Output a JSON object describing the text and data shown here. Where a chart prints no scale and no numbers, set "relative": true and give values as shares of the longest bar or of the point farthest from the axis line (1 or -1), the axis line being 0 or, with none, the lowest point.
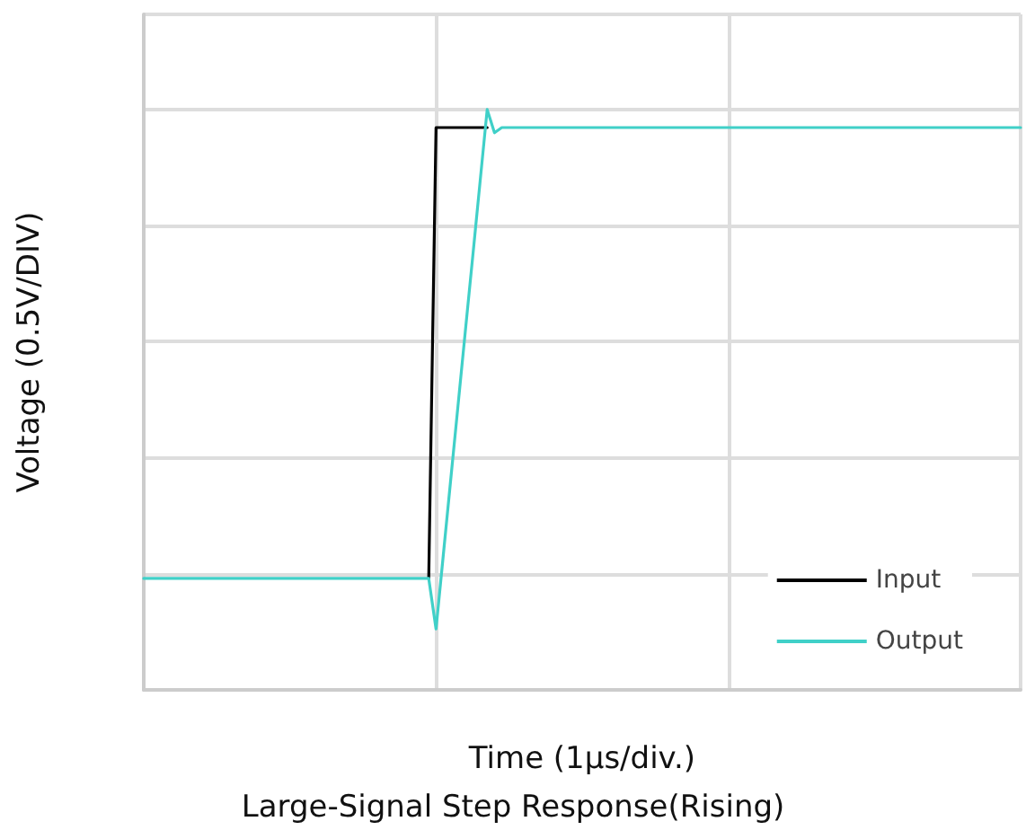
{
  "chart_data": {
    "type": "line",
    "title": "Large-Signal Step Response(Rising)",
    "xlabel": "Time (1μs/div.)",
    "ylabel": "Voltage (0.5V/DIV)",
    "relative": true,
    "grid": true,
    "legend": "bottom right",
    "line_style": "solid",
    "categories": [
      null,
      null,
      null,
      null,
      null,
      null,
      null,
      null,
      null,
      null,
      null,
      null,
      null,
      null,
      null,
      null,
      null,
      null,
      null,
      null,
      null,
      null,
      null,
      null,
      null,
      null,
      null,
      null,
      null,
      null,
      null,
      null,
      null,
      null,
      null,
      null,
      null,
      null,
      null,
      null,
      null,
      null,
      null,
      null,
      null,
      null,
      null,
      null,
      null,
      null,
      null,
      null,
      null,
      null,
      null,
      null,
      null,
      null,
      null,
      null,
      null,
      null,
      null,
      null,
      null,
      null,
      null,
      null,
      null,
      null,
      null,
      null,
      null,
      null,
      null,
      null,
      null,
      null,
      null,
      null,
      null,
      null,
      null,
      null,
      null,
      null,
      null,
      null,
      null,
      null,
      null,
      null,
      null,
      null,
      null,
      null,
      null,
      null,
      null,
      null,
      null,
      null,
      null,
      null,
      null,
      null,
      null,
      null,
      null,
      null,
      null,
      null,
      null,
      null,
      null,
      null,
      null,
      null,
      null,
      null,
      null
    ],
    "series": [
      {
        "name": "Input",
        "color": "#000000",
        "values": [
          null,
          null,
          null,
          null,
          null,
          null,
          null,
          null,
          null,
          null,
          null,
          null,
          null,
          null,
          null,
          null,
          null,
          null,
          null,
          null,
          null,
          null,
          null,
          null,
          null,
          null,
          null,
          null,
          null,
          null,
          null,
          null,
          null,
          null,
          null,
          null,
          null,
          null,
          null,
          0.192,
          0.969,
          0.969,
          0.969,
          0.969,
          0.969,
          0.969,
          0.969,
          0.969,
          null,
          null,
          null,
          null,
          null,
          null,
          null,
          null,
          null,
          null,
          null,
          null,
          null,
          null,
          null,
          null,
          null,
          null,
          null,
          null,
          null,
          null,
          null,
          null,
          null,
          null,
          null,
          null,
          null,
          null,
          null,
          null,
          null,
          null,
          null,
          null,
          null,
          null,
          null,
          null,
          null,
          null,
          null,
          null,
          null,
          null,
          null,
          null,
          null,
          null,
          null,
          null,
          null,
          null,
          null,
          null,
          null,
          null,
          null,
          null,
          null,
          null,
          null,
          null,
          null,
          null,
          null,
          null,
          null,
          null,
          null,
          null,
          null
        ]
      },
      {
        "name": "Output",
        "color": "#40d0c8",
        "values": [
          0.192,
          0.192,
          0.192,
          0.192,
          0.192,
          0.192,
          0.192,
          0.192,
          0.192,
          0.192,
          0.192,
          0.192,
          0.192,
          0.192,
          0.192,
          0.192,
          0.192,
          0.192,
          0.192,
          0.192,
          0.192,
          0.192,
          0.192,
          0.192,
          0.192,
          0.192,
          0.192,
          0.192,
          0.192,
          0.192,
          0.192,
          0.192,
          0.192,
          0.192,
          0.192,
          0.192,
          0.192,
          0.192,
          0.192,
          0.192,
          0.105,
          0.233,
          0.361,
          0.489,
          0.617,
          0.744,
          0.872,
          1.0,
          0.96,
          0.969,
          0.969,
          0.969,
          0.969,
          0.969,
          0.969,
          0.969,
          0.969,
          0.969,
          0.969,
          0.969,
          0.969,
          0.969,
          0.969,
          0.969,
          0.969,
          0.969,
          0.969,
          0.969,
          0.969,
          0.969,
          0.969,
          0.969,
          0.969,
          0.969,
          0.969,
          0.969,
          0.969,
          0.969,
          0.969,
          0.969,
          0.969,
          0.969,
          0.969,
          0.969,
          0.969,
          0.969,
          0.969,
          0.969,
          0.969,
          0.969,
          0.969,
          0.969,
          0.969,
          0.969,
          0.969,
          0.969,
          0.969,
          0.969,
          0.969,
          0.969,
          0.969,
          0.969,
          0.969,
          0.969,
          0.969,
          0.969,
          0.969,
          0.969,
          0.969,
          0.969,
          0.969,
          0.969,
          0.969,
          0.969,
          0.969,
          0.969,
          0.969,
          0.969,
          0.969,
          0.969,
          0.969
        ]
      }
    ]
  }
}
